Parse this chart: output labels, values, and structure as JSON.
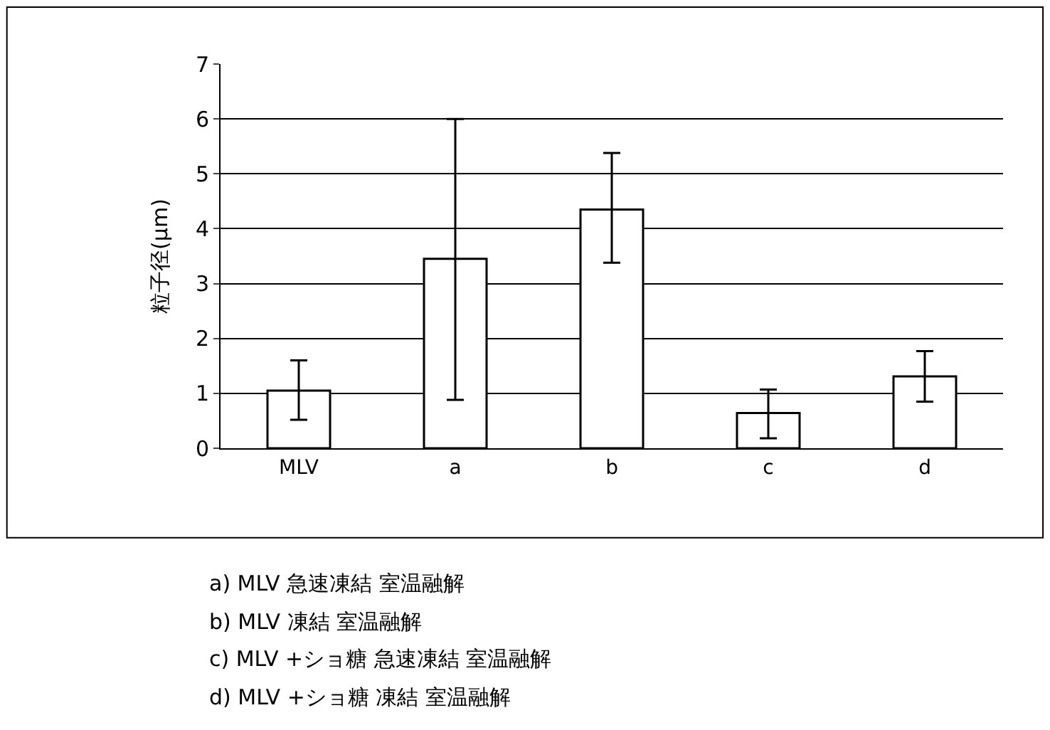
{
  "chart_data": {
    "type": "bar",
    "ylabel": "粒子径(μm)",
    "categories": [
      "MLV",
      "a",
      "b",
      "c",
      "d"
    ],
    "values": [
      1.05,
      3.45,
      4.35,
      0.64,
      1.31
    ],
    "errors": [
      [
        0.52,
        1.6
      ],
      [
        0.88,
        6.0
      ],
      [
        3.38,
        5.38
      ],
      [
        0.18,
        1.07
      ],
      [
        0.85,
        1.77
      ]
    ],
    "color": "#ffffff",
    "ylim": [
      0,
      7
    ],
    "yticks": [
      0,
      1,
      2,
      3,
      4,
      5,
      6,
      7
    ],
    "grid": "y",
    "annotations": [
      "a) MLV 急速凍結 室温融解",
      "b) MLV 凍結 室温融解",
      "c) MLV +ショ糖 急速凍結 室温融解",
      "d) MLV +ショ糖 凍結 室温融解"
    ]
  }
}
